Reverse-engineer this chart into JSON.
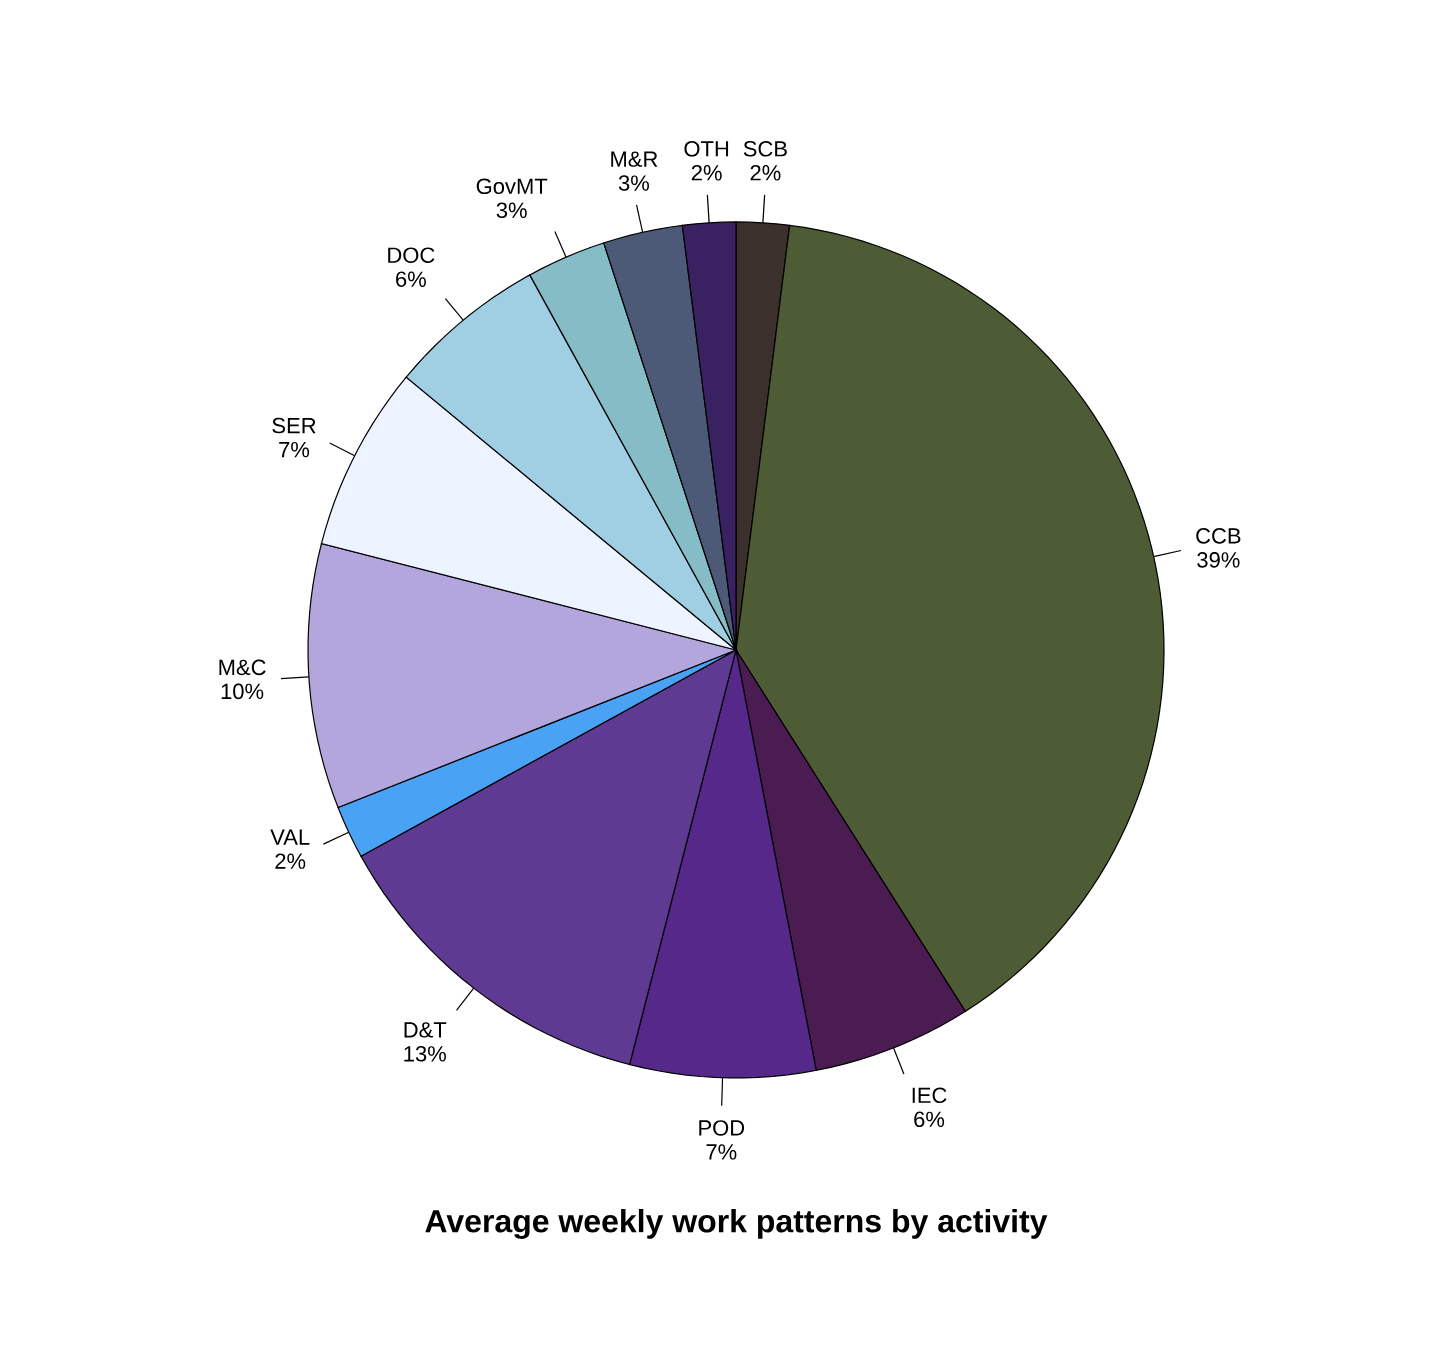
{
  "chart_data": {
    "type": "pie",
    "title": "Average weekly work patterns by activity",
    "categories": [
      "SCB",
      "CCB",
      "IEC",
      "POD",
      "D&T",
      "VAL",
      "M&C",
      "SER",
      "DOC",
      "GovMT",
      "M&R",
      "OTH"
    ],
    "values": [
      2,
      39,
      6,
      7,
      13,
      2,
      10,
      7,
      6,
      3,
      3,
      2
    ],
    "value_labels": [
      "2%",
      "39%",
      "6%",
      "7%",
      "13%",
      "2%",
      "10%",
      "7%",
      "6%",
      "3%",
      "3%",
      "2%"
    ],
    "colors": [
      "#3b302b",
      "#4e5c36",
      "#4a1c52",
      "#55288a",
      "#5e3a92",
      "#4aa2f5",
      "#b3a6dc",
      "#eef4ff",
      "#a0cfe4",
      "#86bcc6",
      "#4c5a78",
      "#3a2262"
    ]
  }
}
